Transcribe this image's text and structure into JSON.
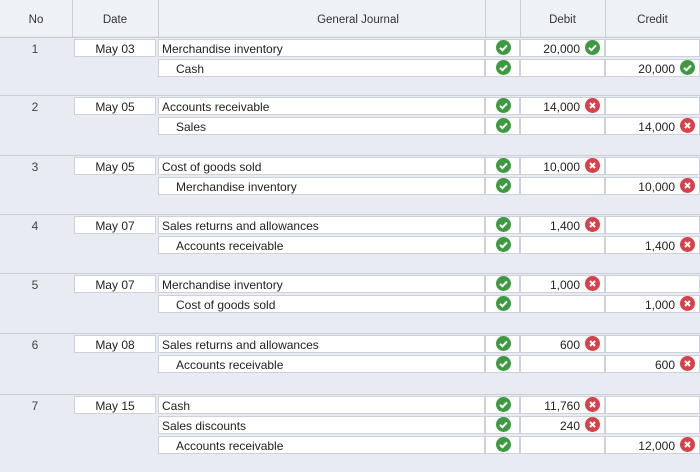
{
  "header": {
    "columns": [
      "No",
      "Date",
      "General Journal",
      "Debit",
      "Credit"
    ]
  },
  "entries": [
    {
      "no": "1",
      "date": "May 03",
      "lines": [
        {
          "account": "Merchandise inventory",
          "side": "debit",
          "amount": "20,000",
          "account_status": "correct",
          "amount_status": "correct"
        },
        {
          "account": "Cash",
          "side": "credit",
          "amount": "20,000",
          "account_status": "correct",
          "amount_status": "correct"
        }
      ]
    },
    {
      "no": "2",
      "date": "May 05",
      "lines": [
        {
          "account": "Accounts receivable",
          "side": "debit",
          "amount": "14,000",
          "account_status": "correct",
          "amount_status": "incorrect"
        },
        {
          "account": "Sales",
          "side": "credit",
          "amount": "14,000",
          "account_status": "correct",
          "amount_status": "incorrect"
        }
      ]
    },
    {
      "no": "3",
      "date": "May 05",
      "lines": [
        {
          "account": "Cost of goods sold",
          "side": "debit",
          "amount": "10,000",
          "account_status": "correct",
          "amount_status": "incorrect"
        },
        {
          "account": "Merchandise inventory",
          "side": "credit",
          "amount": "10,000",
          "account_status": "correct",
          "amount_status": "incorrect"
        }
      ]
    },
    {
      "no": "4",
      "date": "May 07",
      "lines": [
        {
          "account": "Sales returns and allowances",
          "side": "debit",
          "amount": "1,400",
          "account_status": "correct",
          "amount_status": "incorrect"
        },
        {
          "account": "Accounts receivable",
          "side": "credit",
          "amount": "1,400",
          "account_status": "correct",
          "amount_status": "incorrect"
        }
      ]
    },
    {
      "no": "5",
      "date": "May 07",
      "lines": [
        {
          "account": "Merchandise inventory",
          "side": "debit",
          "amount": "1,000",
          "account_status": "correct",
          "amount_status": "incorrect"
        },
        {
          "account": "Cost of goods sold",
          "side": "credit",
          "amount": "1,000",
          "account_status": "correct",
          "amount_status": "incorrect"
        }
      ]
    },
    {
      "no": "6",
      "date": "May 08",
      "lines": [
        {
          "account": "Sales returns and allowances",
          "side": "debit",
          "amount": "600",
          "account_status": "correct",
          "amount_status": "incorrect"
        },
        {
          "account": "Accounts receivable",
          "side": "credit",
          "amount": "600",
          "account_status": "correct",
          "amount_status": "incorrect"
        }
      ]
    },
    {
      "no": "7",
      "date": "May 15",
      "lines": [
        {
          "account": "Cash",
          "side": "debit",
          "amount": "11,760",
          "account_status": "correct",
          "amount_status": "incorrect"
        },
        {
          "account": "Sales discounts",
          "side": "debit",
          "amount": "240",
          "account_status": "correct",
          "amount_status": "incorrect"
        },
        {
          "account": "Accounts receivable",
          "side": "credit",
          "amount": "12,000",
          "account_status": "correct",
          "amount_status": "incorrect"
        }
      ]
    }
  ]
}
